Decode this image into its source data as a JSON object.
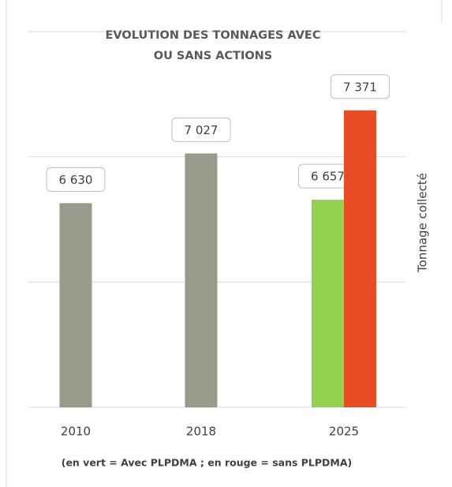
{
  "chart_data": {
    "type": "bar",
    "title": "EVOLUTION DES TONNAGES AVEC OU SANS ACTIONS",
    "y_axis_label": "Tonnage collecté",
    "note": "(en vert = Avec PLPDMA ;  en rouge = sans PLPDMA)",
    "categories": [
      "2010",
      "2018",
      "2025"
    ],
    "series": [
      {
        "color": "#999a8b",
        "values": [
          6630,
          7027,
          null
        ],
        "value_labels": [
          "6 630",
          "7 027",
          null
        ]
      },
      {
        "color": "#92d050",
        "values": [
          null,
          null,
          6657
        ],
        "value_labels": [
          null,
          null,
          "6 657"
        ]
      },
      {
        "color": "#e84c22",
        "values": [
          null,
          null,
          7371
        ],
        "value_labels": [
          null,
          null,
          "7 371"
        ]
      }
    ],
    "ylim": [
      5000,
      8000
    ],
    "yticks": [
      5000,
      6000,
      7000,
      8000
    ],
    "grid": true
  }
}
